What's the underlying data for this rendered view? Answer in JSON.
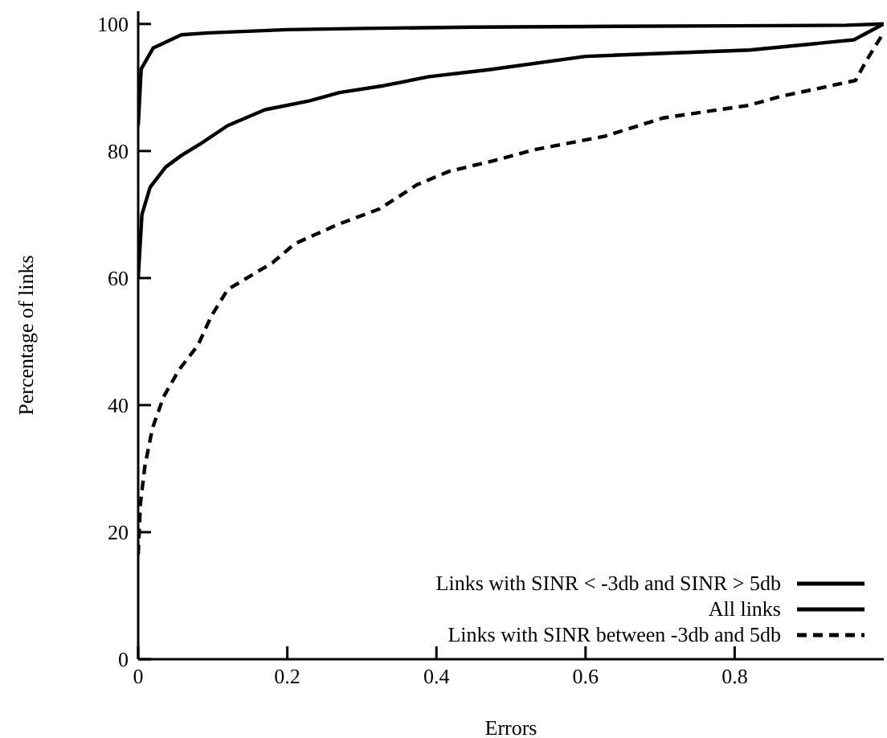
{
  "chart_data": {
    "type": "line",
    "xlabel": "Errors",
    "ylabel": "Percentage of links",
    "xlim": [
      0,
      1
    ],
    "ylim": [
      0,
      102
    ],
    "xticks": [
      0,
      0.2,
      0.4,
      0.6,
      0.8
    ],
    "yticks": [
      0,
      20,
      40,
      60,
      80,
      100
    ],
    "grid": false,
    "legend": "bottom right",
    "marker": "none",
    "series": [
      {
        "name": "Links with SINR < -3db and SINR > 5db",
        "color": "#000000",
        "line_style": "solid",
        "x": [
          0,
          0.004,
          0.02,
          0.058,
          0.095,
          0.2,
          0.3,
          0.45,
          0.6,
          0.8,
          0.95,
          1
        ],
        "values": [
          84,
          92.9,
          96.2,
          98.3,
          98.6,
          99.1,
          99.3,
          99.5,
          99.6,
          99.7,
          99.8,
          100
        ]
      },
      {
        "name": "All links",
        "color": "#000000",
        "line_style": "solid",
        "x": [
          0,
          0.005,
          0.016,
          0.037,
          0.058,
          0.087,
          0.12,
          0.17,
          0.23,
          0.27,
          0.33,
          0.39,
          0.47,
          0.6,
          0.82,
          0.96,
          1
        ],
        "values": [
          60,
          70,
          74.3,
          77.5,
          79.3,
          81.4,
          84,
          86.5,
          87.9,
          89.2,
          90.3,
          91.7,
          92.8,
          94.9,
          95.9,
          97.5,
          100
        ]
      },
      {
        "name": "Links with SINR between -3db and 5db",
        "color": "#000000",
        "line_style": "dashed",
        "x": [
          0,
          0.003,
          0.009,
          0.019,
          0.034,
          0.055,
          0.08,
          0.098,
          0.12,
          0.18,
          0.21,
          0.267,
          0.324,
          0.374,
          0.417,
          0.478,
          0.531,
          0.625,
          0.704,
          0.819,
          0.862,
          0.962,
          0.976,
          0.998
        ],
        "values": [
          16.5,
          24.5,
          30.4,
          36.3,
          41.3,
          45.6,
          49.4,
          54,
          58.2,
          62.4,
          65.4,
          68.4,
          70.9,
          74.7,
          76.8,
          78.5,
          80.2,
          82.3,
          85.2,
          87.2,
          88.6,
          91.1,
          94.1,
          98.3
        ]
      }
    ]
  }
}
